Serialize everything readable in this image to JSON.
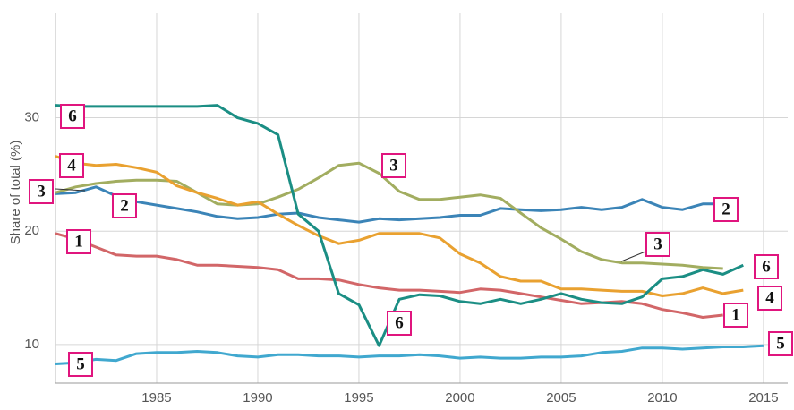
{
  "chart_data": {
    "type": "line",
    "y_label": "Share of total (%)",
    "x": [
      1980,
      1981,
      1982,
      1983,
      1984,
      1985,
      1986,
      1987,
      1988,
      1989,
      1990,
      1991,
      1992,
      1993,
      1994,
      1995,
      1996,
      1997,
      1998,
      1999,
      2000,
      2001,
      2002,
      2003,
      2004,
      2005,
      2006,
      2007,
      2008,
      2009,
      2010,
      2011,
      2012,
      2013,
      2014,
      2015
    ],
    "xlim": [
      1980,
      2016.2
    ],
    "xticks": [
      1985,
      1990,
      1995,
      2000,
      2005,
      2010,
      2015
    ],
    "ylim": [
      6.6,
      39.2
    ],
    "yticks": [
      10,
      20,
      30
    ],
    "grid": true,
    "series": [
      {
        "name": "1",
        "color": "#d26668",
        "values": [
          19.8,
          19.3,
          18.6,
          17.9,
          17.8,
          17.8,
          17.5,
          17.0,
          17.0,
          16.9,
          16.8,
          16.6,
          15.8,
          15.8,
          15.7,
          15.3,
          15.0,
          14.8,
          14.8,
          14.7,
          14.6,
          14.9,
          14.8,
          14.5,
          14.2,
          13.9,
          13.6,
          13.7,
          13.8,
          13.6,
          13.1,
          12.8,
          12.4,
          12.6,
          null,
          null
        ]
      },
      {
        "name": "2",
        "color": "#3b84b7",
        "values": [
          23.3,
          23.4,
          23.9,
          23.1,
          22.6,
          22.3,
          22.0,
          21.7,
          21.3,
          21.1,
          21.2,
          21.5,
          21.6,
          21.2,
          21.0,
          20.8,
          21.1,
          21.0,
          21.1,
          21.2,
          21.4,
          21.4,
          22.0,
          21.9,
          21.8,
          21.9,
          22.1,
          21.9,
          22.1,
          22.8,
          22.1,
          21.9,
          22.4,
          22.4,
          null,
          null
        ]
      },
      {
        "name": "3",
        "color": "#a2ad60",
        "values": [
          23.4,
          23.9,
          24.2,
          24.4,
          24.5,
          24.5,
          24.4,
          23.4,
          22.4,
          22.3,
          22.4,
          23.0,
          23.7,
          24.7,
          25.8,
          26.0,
          25.1,
          23.5,
          22.8,
          22.8,
          23.0,
          23.2,
          22.9,
          21.6,
          20.3,
          19.3,
          18.2,
          17.5,
          17.2,
          17.2,
          17.1,
          17.0,
          16.8,
          16.7,
          null,
          null
        ]
      },
      {
        "name": "4",
        "color": "#e9a130",
        "values": [
          26.6,
          26.0,
          25.8,
          25.9,
          25.6,
          25.2,
          24.0,
          23.4,
          22.9,
          22.3,
          22.6,
          21.5,
          20.5,
          19.6,
          18.9,
          19.2,
          19.8,
          19.8,
          19.8,
          19.4,
          18.0,
          17.2,
          16.0,
          15.6,
          15.6,
          14.9,
          14.9,
          14.8,
          14.7,
          14.7,
          14.3,
          14.5,
          15.0,
          14.5,
          14.8,
          null
        ]
      },
      {
        "name": "5",
        "color": "#40a8cf",
        "values": [
          8.3,
          8.4,
          8.7,
          8.6,
          9.2,
          9.3,
          9.3,
          9.4,
          9.3,
          9.0,
          8.9,
          9.1,
          9.1,
          9.0,
          9.0,
          8.9,
          9.0,
          9.0,
          9.1,
          9.0,
          8.8,
          8.9,
          8.8,
          8.8,
          8.9,
          8.9,
          9.0,
          9.3,
          9.4,
          9.7,
          9.7,
          9.6,
          9.7,
          9.8,
          9.8,
          9.9
        ]
      },
      {
        "name": "6",
        "color": "#1b8e84",
        "values": [
          31.1,
          31.0,
          31.0,
          31.0,
          31.0,
          31.0,
          31.0,
          31.0,
          31.1,
          30.0,
          29.5,
          28.5,
          21.5,
          20.0,
          14.5,
          13.5,
          9.9,
          14.0,
          14.4,
          14.3,
          13.8,
          13.6,
          14.0,
          13.6,
          14.0,
          14.5,
          14.0,
          13.7,
          13.6,
          14.2,
          15.8,
          16.0,
          16.6,
          16.2,
          17.0,
          null
        ]
      }
    ]
  }
}
